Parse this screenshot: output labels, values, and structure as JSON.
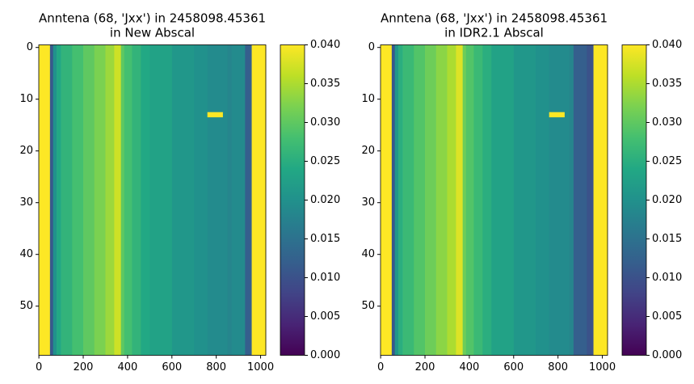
{
  "chart_data": [
    {
      "type": "heatmap",
      "title": [
        "Anntena (68, 'Jxx') in 2458098.45361",
        "in New Abscal"
      ],
      "colormap": "viridis",
      "x_edges": [
        0,
        50,
        64,
        80,
        100,
        150,
        200,
        250,
        300,
        340,
        370,
        385,
        420,
        460,
        500,
        600,
        700,
        760,
        850,
        870,
        930,
        960,
        1024
      ],
      "values": [
        0.04,
        0.011,
        0.02,
        0.024,
        0.026,
        0.028,
        0.03,
        0.032,
        0.034,
        0.037,
        0.03,
        0.028,
        0.026,
        0.024,
        0.023,
        0.021,
        0.02,
        0.019,
        0.018,
        0.019,
        0.012,
        0.04
      ],
      "segments": [
        {
          "x0": 760,
          "x1": 830,
          "row": 13,
          "value": 0.04
        }
      ],
      "xlim": [
        -0.5,
        1023.5
      ],
      "ylim": [
        59.5,
        -0.5
      ],
      "xticks": [
        0,
        200,
        400,
        600,
        800,
        1000
      ],
      "yticks": [
        0,
        10,
        20,
        30,
        40,
        50
      ],
      "clim": [
        0,
        0.04
      ],
      "cticks": [
        {
          "value": 0,
          "label": "0.000"
        },
        {
          "value": 0.005,
          "label": "0.005"
        },
        {
          "value": 0.01,
          "label": "0.010"
        },
        {
          "value": 0.015,
          "label": "0.015"
        },
        {
          "value": 0.02,
          "label": "0.020"
        },
        {
          "value": 0.025,
          "label": "0.025"
        },
        {
          "value": 0.03,
          "label": "0.030"
        },
        {
          "value": 0.035,
          "label": "0.035"
        },
        {
          "value": 0.04,
          "label": "0.040"
        }
      ]
    },
    {
      "type": "heatmap",
      "title": [
        "Anntena (68, 'Jxx') in 2458098.45361",
        "in IDR2.1 Abscal"
      ],
      "colormap": "viridis",
      "x_edges": [
        0,
        50,
        64,
        80,
        100,
        150,
        200,
        250,
        300,
        340,
        370,
        385,
        420,
        460,
        500,
        600,
        700,
        760,
        850,
        870,
        930,
        960,
        1024
      ],
      "values": [
        0.04,
        0.011,
        0.021,
        0.025,
        0.027,
        0.029,
        0.031,
        0.033,
        0.035,
        0.038,
        0.031,
        0.029,
        0.027,
        0.025,
        0.023,
        0.021,
        0.02,
        0.019,
        0.018,
        0.012,
        0.01,
        0.04
      ],
      "segments": [
        {
          "x0": 760,
          "x1": 830,
          "row": 13,
          "value": 0.04
        }
      ],
      "xlim": [
        -0.5,
        1023.5
      ],
      "ylim": [
        59.5,
        -0.5
      ],
      "xticks": [
        0,
        200,
        400,
        600,
        800,
        1000
      ],
      "yticks": [
        0,
        10,
        20,
        30,
        40,
        50
      ],
      "clim": [
        0,
        0.04
      ],
      "cticks": [
        {
          "value": 0,
          "label": "0.000"
        },
        {
          "value": 0.005,
          "label": "0.005"
        },
        {
          "value": 0.01,
          "label": "0.010"
        },
        {
          "value": 0.015,
          "label": "0.015"
        },
        {
          "value": 0.02,
          "label": "0.020"
        },
        {
          "value": 0.025,
          "label": "0.025"
        },
        {
          "value": 0.03,
          "label": "0.030"
        },
        {
          "value": 0.035,
          "label": "0.035"
        },
        {
          "value": 0.04,
          "label": "0.040"
        }
      ]
    }
  ]
}
